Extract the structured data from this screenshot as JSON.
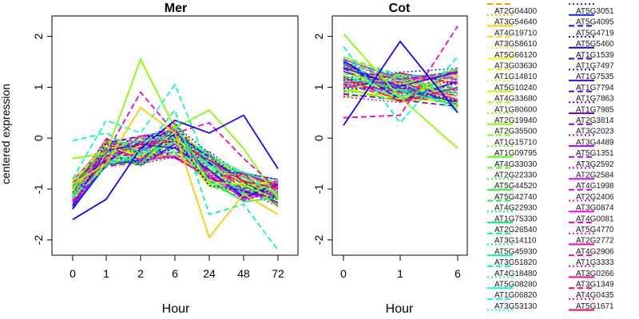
{
  "figure": {
    "ylabel": "centered expression",
    "xlabel": "Hour"
  },
  "chart_data": [
    {
      "type": "line",
      "title": "Mer",
      "xlabel": "Hour",
      "ylabel": "centered expression",
      "categories": [
        "0",
        "1",
        "2",
        "6",
        "24",
        "48",
        "72"
      ],
      "ylim": [
        -2.3,
        2.4
      ],
      "yticks": [
        -2,
        -1,
        0,
        1,
        2
      ],
      "grid": false,
      "series_count": 72,
      "highlighted_series": [
        {
          "values": [
            -0.4,
            -0.3,
            1.55,
            0.2,
            0.55,
            -0.2,
            -1.2
          ]
        },
        {
          "values": [
            -0.9,
            -0.3,
            0.9,
            0.1,
            0.3,
            -0.4,
            -1.0
          ]
        },
        {
          "values": [
            -1.6,
            -1.2,
            -0.2,
            0.35,
            0.1,
            0.45,
            -0.6
          ]
        },
        {
          "values": [
            -0.8,
            0.35,
            0.1,
            1.05,
            -0.6,
            -1.1,
            -1.5
          ]
        },
        {
          "values": [
            -0.9,
            -0.5,
            0.6,
            0.1,
            -1.95,
            -1.1,
            -1.5
          ]
        },
        {
          "values": [
            -0.05,
            0.1,
            -0.3,
            0.55,
            -1.5,
            -1.3,
            -2.2
          ]
        }
      ],
      "band_center": [
        -1.1,
        -0.3,
        -0.25,
        -0.05,
        -0.6,
        -0.95,
        -1.1
      ],
      "band_spread": [
        0.3,
        0.3,
        0.3,
        0.35,
        0.35,
        0.3,
        0.3
      ]
    },
    {
      "type": "line",
      "title": "Cot",
      "xlabel": "Hour",
      "categories": [
        "0",
        "1",
        "6"
      ],
      "ylim": [
        -2.3,
        2.4
      ],
      "yticks": [
        -2,
        -1,
        0,
        1,
        2
      ],
      "grid": false,
      "series_count": 72,
      "highlighted_series": [
        {
          "values": [
            2.05,
            0.8,
            -0.2
          ]
        },
        {
          "values": [
            0.4,
            0.45,
            2.2
          ]
        },
        {
          "values": [
            0.25,
            1.9,
            0.5
          ]
        },
        {
          "values": [
            1.8,
            0.3,
            1.6
          ]
        }
      ],
      "band_center": [
        1.2,
        1.0,
        0.95
      ],
      "band_spread": [
        0.4,
        0.3,
        0.45
      ]
    }
  ],
  "legend": {
    "entries": [
      {
        "label": "AT2G04400",
        "color": "#FF9900",
        "dash": "dash"
      },
      {
        "label": "AT3G54640",
        "color": "#FFAA00",
        "dash": "dot"
      },
      {
        "label": "AT4G19710",
        "color": "#FFCC00",
        "dash": "solid"
      },
      {
        "label": "AT3G58610",
        "color": "#FFDD00",
        "dash": "dash"
      },
      {
        "label": "AT5G66120",
        "color": "#FFEE00",
        "dash": "dot"
      },
      {
        "label": "AT3G03630",
        "color": "#EEFF00",
        "dash": "solid"
      },
      {
        "label": "AT1G14810",
        "color": "#DDFF00",
        "dash": "dash"
      },
      {
        "label": "AT5G10240",
        "color": "#CCFF00",
        "dash": "dot"
      },
      {
        "label": "AT4G33680",
        "color": "#BBFF00",
        "dash": "solid"
      },
      {
        "label": "AT1G80600",
        "color": "#AAFF00",
        "dash": "dash"
      },
      {
        "label": "AT2G19940",
        "color": "#99FF00",
        "dash": "dot"
      },
      {
        "label": "AT2G35500",
        "color": "#88FF00",
        "dash": "solid"
      },
      {
        "label": "AT1G15710",
        "color": "#77FF00",
        "dash": "dash"
      },
      {
        "label": "AT1G09795",
        "color": "#66FF00",
        "dash": "dot"
      },
      {
        "label": "AT4G33030",
        "color": "#55FF00",
        "dash": "solid"
      },
      {
        "label": "AT2G22330",
        "color": "#44FF11",
        "dash": "dash"
      },
      {
        "label": "AT5G44520",
        "color": "#33FF22",
        "dash": "dot"
      },
      {
        "label": "AT5G42740",
        "color": "#22FF33",
        "dash": "solid"
      },
      {
        "label": "AT4G22930",
        "color": "#11FF44",
        "dash": "dash"
      },
      {
        "label": "AT1G75330",
        "color": "#00FF55",
        "dash": "dot"
      },
      {
        "label": "AT2G26540",
        "color": "#00FF66",
        "dash": "solid"
      },
      {
        "label": "AT3G14110",
        "color": "#00FF77",
        "dash": "dash"
      },
      {
        "label": "AT5G45930",
        "color": "#00FF88",
        "dash": "dot"
      },
      {
        "label": "AT3G51820",
        "color": "#00FF99",
        "dash": "solid"
      },
      {
        "label": "AT4G18480",
        "color": "#00FFAA",
        "dash": "dash"
      },
      {
        "label": "AT5G08280",
        "color": "#00FFBB",
        "dash": "dot"
      },
      {
        "label": "AT1G06820",
        "color": "#00FFCC",
        "dash": "solid"
      },
      {
        "label": "AT3G53130",
        "color": "#00FFDD",
        "dash": "dash"
      },
      {
        "label": "",
        "color": "#00FFEE",
        "dash": "dot"
      },
      {
        "label": "AT5G3051",
        "color": "#0033FF",
        "dash": "dot"
      },
      {
        "label": "AT5G4095",
        "color": "#0022FF",
        "dash": "solid"
      },
      {
        "label": "AT5G4719",
        "color": "#0011FF",
        "dash": "dash"
      },
      {
        "label": "AT5G5460",
        "color": "#0000FF",
        "dash": "dot"
      },
      {
        "label": "AT1G1539",
        "color": "#1100FF",
        "dash": "solid"
      },
      {
        "label": "AT1G7497",
        "color": "#2200FF",
        "dash": "dash"
      },
      {
        "label": "AT1G7535",
        "color": "#3300FF",
        "dash": "dot"
      },
      {
        "label": "AT1G7794",
        "color": "#4400FF",
        "dash": "solid"
      },
      {
        "label": "AT1G7863",
        "color": "#5500FF",
        "dash": "dash"
      },
      {
        "label": "AT1G7985",
        "color": "#6600FF",
        "dash": "dot"
      },
      {
        "label": "AT2G3814",
        "color": "#7700FF",
        "dash": "solid"
      },
      {
        "label": "AT3G2023",
        "color": "#8800FF",
        "dash": "dash"
      },
      {
        "label": "AT3G4489",
        "color": "#9900FF",
        "dash": "dot"
      },
      {
        "label": "AT5G1351",
        "color": "#AA00FF",
        "dash": "solid"
      },
      {
        "label": "AT3G2592",
        "color": "#BB00FF",
        "dash": "dash"
      },
      {
        "label": "AT2G2584",
        "color": "#CC00FF",
        "dash": "dot"
      },
      {
        "label": "AT4G1998",
        "color": "#DD00FF",
        "dash": "solid"
      },
      {
        "label": "AT2G2406",
        "color": "#EE00FF",
        "dash": "dash"
      },
      {
        "label": "AT3G0874",
        "color": "#FF00FF",
        "dash": "dot"
      },
      {
        "label": "AT4G0081",
        "color": "#FF00EE",
        "dash": "solid"
      },
      {
        "label": "AT5G4770",
        "color": "#FF00DD",
        "dash": "dash"
      },
      {
        "label": "AT2G2772",
        "color": "#FF00CC",
        "dash": "dot"
      },
      {
        "label": "AT4G2906",
        "color": "#FF00BB",
        "dash": "solid"
      },
      {
        "label": "AT1G3333",
        "color": "#FF00AA",
        "dash": "dash"
      },
      {
        "label": "AT3G0266",
        "color": "#FF0099",
        "dash": "dot"
      },
      {
        "label": "AT3G1349",
        "color": "#FF0088",
        "dash": "solid"
      },
      {
        "label": "AT4G0435",
        "color": "#FF0077",
        "dash": "dash"
      },
      {
        "label": "AT5G1671",
        "color": "#FF0066",
        "dash": "dot"
      },
      {
        "label": "",
        "color": "#FF0055",
        "dash": "solid"
      }
    ]
  }
}
